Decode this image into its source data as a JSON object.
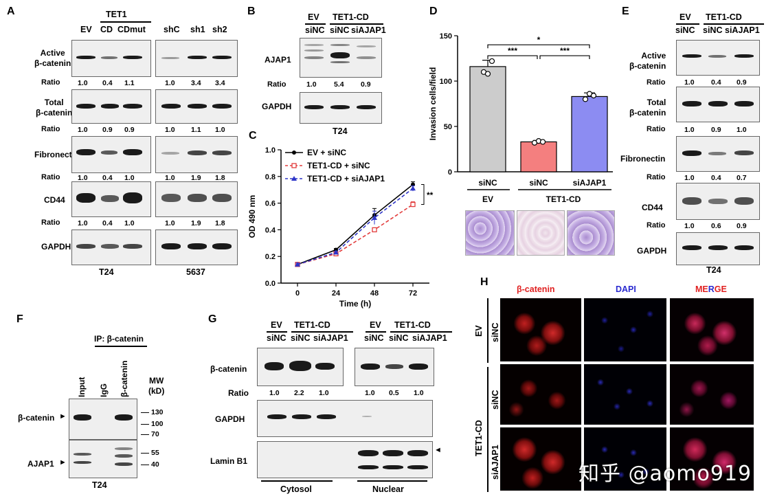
{
  "panel_letters": {
    "a": "A",
    "b": "B",
    "c": "C",
    "d": "D",
    "e": "E",
    "f": "F",
    "g": "G",
    "h": "H"
  },
  "panelA": {
    "group_header": "TET1",
    "cols_t24": [
      "EV",
      "CD",
      "CDmut"
    ],
    "cols_5637": [
      "shC",
      "sh1",
      "sh2"
    ],
    "rows": [
      {
        "label": "Active\nβ-catenin",
        "ratio_label": "Ratio",
        "ratios_t24": [
          "1.0",
          "0.4",
          "1.1"
        ],
        "ratios_5637": [
          "1.0",
          "3.4",
          "3.4"
        ]
      },
      {
        "label": "Total\nβ-catenin",
        "ratio_label": "Ratio",
        "ratios_t24": [
          "1.0",
          "0.9",
          "0.9"
        ],
        "ratios_5637": [
          "1.0",
          "1.1",
          "1.0"
        ]
      },
      {
        "label": "Fibronectin",
        "ratio_label": "Ratio",
        "ratios_t24": [
          "1.0",
          "0.4",
          "1.0"
        ],
        "ratios_5637": [
          "1.0",
          "1.9",
          "1.8"
        ]
      },
      {
        "label": "CD44",
        "ratio_label": "Ratio",
        "ratios_t24": [
          "1.0",
          "0.4",
          "1.0"
        ],
        "ratios_5637": [
          "1.0",
          "1.9",
          "1.8"
        ]
      },
      {
        "label": "GAPDH"
      }
    ],
    "footer_t24": "T24",
    "footer_5637": "5637"
  },
  "panelB": {
    "top_headers": [
      "EV",
      "TET1-CD"
    ],
    "sub_headers": [
      "siNC",
      "siNC",
      "siAJAP1"
    ],
    "rows": [
      {
        "label": "AJAP1"
      },
      {
        "label": "GAPDH"
      }
    ],
    "ratio_label": "Ratio",
    "ratios": [
      "1.0",
      "5.4",
      "0.9"
    ],
    "footer": "T24"
  },
  "panelC": {
    "chart_data": {
      "type": "line",
      "x": [
        0,
        24,
        48,
        72
      ],
      "xlabel": "Time (h)",
      "ylabel": "OD 490 nm",
      "xticks": [
        "0",
        "24",
        "48",
        "72"
      ],
      "yticks": [
        "0.0",
        "0.2",
        "0.4",
        "0.6",
        "0.8",
        "1.0"
      ],
      "ylim": [
        0,
        1.0
      ],
      "legend_position": "top-left",
      "significance": "**",
      "series": [
        {
          "name": "EV + siNC",
          "values": [
            0.14,
            0.25,
            0.51,
            0.74
          ],
          "errors": [
            0.01,
            0.01,
            0.05,
            0.02
          ],
          "color": "#000000",
          "marker": "circle",
          "dash": "solid"
        },
        {
          "name": "TET1-CD + siNC",
          "values": [
            0.14,
            0.22,
            0.4,
            0.59
          ],
          "errors": [
            0.01,
            0.01,
            0.01,
            0.02
          ],
          "color": "#e23b3b",
          "marker": "square-open",
          "dash": "dashed"
        },
        {
          "name": "TET1-CD + siAJAP1",
          "values": [
            0.14,
            0.23,
            0.49,
            0.71
          ],
          "errors": [
            0.01,
            0.01,
            0.05,
            0.02
          ],
          "color": "#2d35c8",
          "marker": "triangle",
          "dash": "dashed"
        }
      ]
    }
  },
  "panelD": {
    "chart_data": {
      "type": "bar",
      "categories": [
        "siNC",
        "siNC",
        "siAJAP1"
      ],
      "values": [
        116,
        33,
        83
      ],
      "errors": [
        7,
        1.5,
        4
      ],
      "points": [
        [
          110,
          108,
          122
        ],
        [
          32,
          34,
          33
        ],
        [
          80,
          86,
          84
        ]
      ],
      "ylabel": "Invasion cells/field",
      "yticks": [
        "0",
        "50",
        "100",
        "150"
      ],
      "ylim": [
        0,
        150
      ],
      "colors": [
        "#cccccc",
        "#f47f7f",
        "#8c8cf2"
      ],
      "group_labels": [
        "EV",
        "TET1-CD"
      ],
      "significance": [
        "*",
        "***",
        "***"
      ]
    }
  },
  "panelE": {
    "top_headers": [
      "EV",
      "TET1-CD"
    ],
    "sub_headers": [
      "siNC",
      "siNC",
      "siAJAP1"
    ],
    "rows": [
      {
        "label": "Active\nβ-catenin",
        "ratio_label": "Ratio",
        "ratios": [
          "1.0",
          "0.4",
          "0.9"
        ]
      },
      {
        "label": "Total\nβ-catenin",
        "ratio_label": "Ratio",
        "ratios": [
          "1.0",
          "0.9",
          "1.0"
        ]
      },
      {
        "label": "Fibronectin",
        "ratio_label": "Ratio",
        "ratios": [
          "1.0",
          "0.4",
          "0.7"
        ]
      },
      {
        "label": "CD44",
        "ratio_label": "Ratio",
        "ratios": [
          "1.0",
          "0.6",
          "0.9"
        ]
      },
      {
        "label": "GAPDH"
      }
    ],
    "footer": "T24"
  },
  "panelF": {
    "ip_header": "IP: β-catenin",
    "lanes": [
      "Input",
      "IgG",
      "β-catenin"
    ],
    "mw_header": "MW\n(kD)",
    "mw_markers": [
      "130",
      "100",
      "70",
      "55",
      "40"
    ],
    "rows": [
      {
        "label": "β-catenin"
      },
      {
        "label": "AJAP1"
      }
    ],
    "footer": "T24"
  },
  "panelG": {
    "top_headers": [
      "EV",
      "TET1-CD",
      "EV",
      "TET1-CD"
    ],
    "sub_headers": [
      "siNC",
      "siNC",
      "siAJAP1",
      "siNC",
      "siNC",
      "siAJAP1"
    ],
    "rows": [
      {
        "label": "β-catenin"
      },
      {
        "label": "GAPDH"
      },
      {
        "label": "Lamin B1"
      }
    ],
    "ratio_label": "Ratio",
    "ratios": [
      "1.0",
      "2.2",
      "1.0",
      "1.0",
      "0.5",
      "1.0"
    ],
    "fractions": [
      "Cytosol",
      "Nuclear"
    ]
  },
  "panelH": {
    "columns": [
      "β-catenin",
      "DAPI",
      "MERGE"
    ],
    "merge_parts": [
      "ME",
      "R",
      "GE"
    ],
    "row_groups": [
      "EV",
      "TET1-CD"
    ],
    "rows": [
      "siNC",
      "siNC",
      "siAJAP1"
    ]
  },
  "watermark": "知乎 @aomo919"
}
